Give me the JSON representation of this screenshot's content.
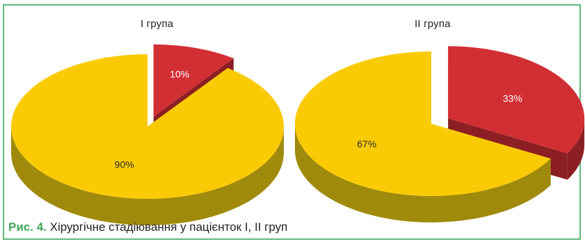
{
  "figure": {
    "caption_prefix": "Рис. 4.",
    "caption_text": "Хірургічне стадіювання у пацієнток I, II груп"
  },
  "colors": {
    "yellow_top": "#FACB05",
    "yellow_side": "#A08A0B",
    "red_top": "#D22F34",
    "red_side": "#8C1F23",
    "frame_border": "#5FB878",
    "caption_accent": "#3FA556"
  },
  "chart_data": [
    {
      "type": "pie",
      "title": "I група",
      "three_d": true,
      "exploded_slice": "10%",
      "slices": [
        {
          "label": "10%",
          "value": 10,
          "color": "#D22F34"
        },
        {
          "label": "90%",
          "value": 90,
          "color": "#FACB05"
        }
      ]
    },
    {
      "type": "pie",
      "title": "II група",
      "three_d": true,
      "exploded_slice": "33%",
      "slices": [
        {
          "label": "33%",
          "value": 33,
          "color": "#D22F34"
        },
        {
          "label": "67%",
          "value": 67,
          "color": "#FACB05"
        }
      ]
    }
  ]
}
